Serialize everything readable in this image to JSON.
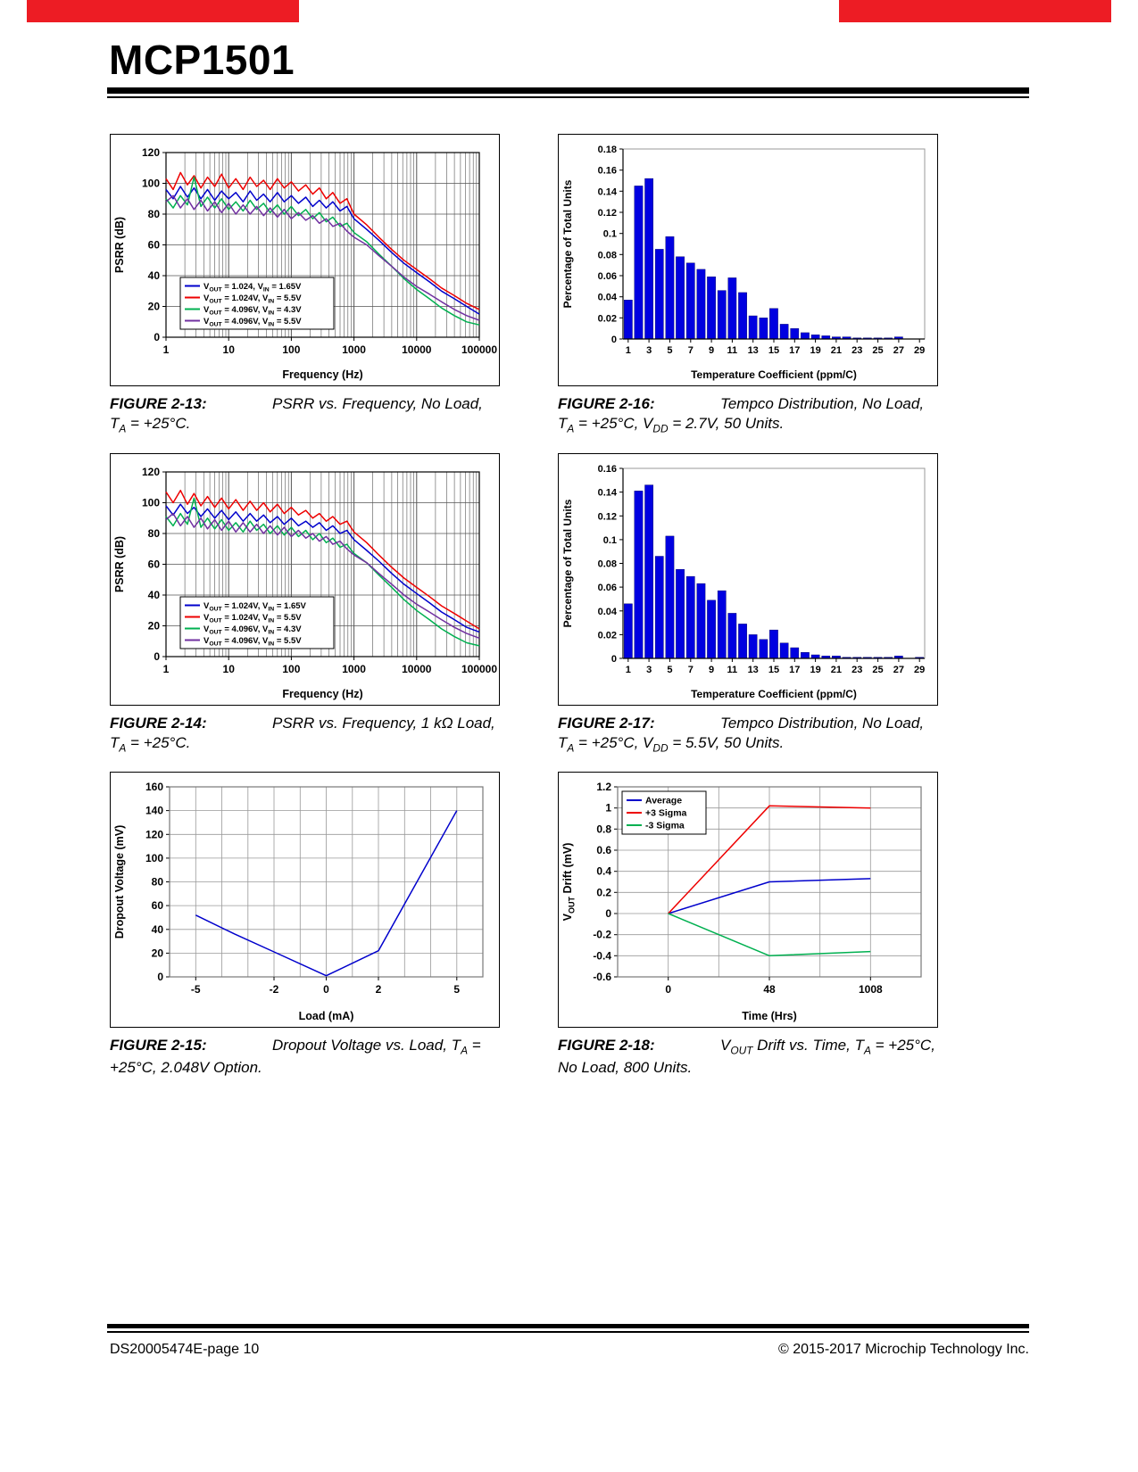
{
  "page": {
    "header_title": "MCP1501",
    "footer_left": "DS20005474E-page 10",
    "footer_right": "© 2015-2017 Microchip Technology Inc.",
    "accent_red": "#ED1C24"
  },
  "chart_data": [
    {
      "id": "figure-2-13",
      "type": "line",
      "caption_label": "FIGURE 2-13:",
      "caption_text": "PSRR vs. Frequency, No Load, T~A~ = +25°C.",
      "xlabel": "Frequency (Hz)",
      "ylabel": "PSRR (dB)",
      "xscale": "log",
      "xlim": [
        1,
        100000
      ],
      "ylim": [
        0,
        120
      ],
      "ystep": 20,
      "x_tick_labels": [
        "1",
        "10",
        "100",
        "1000",
        "10000",
        "100000"
      ],
      "x": [
        1,
        1.3,
        1.7,
        2.2,
        2.8,
        3.6,
        4.6,
        6,
        7.7,
        10,
        13,
        17,
        22,
        28,
        36,
        46,
        60,
        77,
        100,
        130,
        170,
        220,
        280,
        360,
        460,
        600,
        770,
        1000,
        1600,
        2500,
        4000,
        6300,
        10000,
        16000,
        25000,
        40000,
        63000,
        100000
      ],
      "legend": true,
      "series": [
        {
          "label": "V~OUT~ = 1.024, V~IN~ = 1.65V",
          "color": "#0000CC",
          "y": [
            96,
            90,
            98,
            91,
            97,
            90,
            96,
            89,
            95,
            90,
            94,
            88,
            95,
            89,
            93,
            88,
            94,
            88,
            92,
            87,
            91,
            85,
            89,
            84,
            88,
            82,
            85,
            77,
            70,
            63,
            55,
            48,
            42,
            36,
            30,
            25,
            20,
            15
          ]
        },
        {
          "label": "V~OUT~ = 1.024V, V~IN~ = 5.5V",
          "color": "#EE0000",
          "y": [
            103,
            96,
            107,
            99,
            105,
            97,
            104,
            98,
            106,
            97,
            103,
            96,
            104,
            98,
            102,
            96,
            103,
            97,
            101,
            95,
            99,
            93,
            97,
            90,
            94,
            87,
            90,
            80,
            73,
            65,
            57,
            50,
            44,
            38,
            32,
            27,
            22,
            18
          ]
        },
        {
          "label": "V~OUT~ = 4.096V, V~IN~ = 4.3V",
          "color": "#00B050",
          "y": [
            90,
            84,
            92,
            86,
            104,
            85,
            91,
            84,
            90,
            83,
            88,
            82,
            89,
            83,
            87,
            81,
            86,
            80,
            85,
            79,
            83,
            77,
            81,
            75,
            78,
            72,
            74,
            68,
            62,
            54,
            46,
            38,
            31,
            25,
            19,
            14,
            10,
            8
          ]
        },
        {
          "label": "V~OUT~ = 4.096V, V~IN~ = 5.5V",
          "color": "#7030A0",
          "y": [
            88,
            92,
            84,
            90,
            83,
            89,
            82,
            88,
            81,
            87,
            80,
            86,
            80,
            85,
            79,
            84,
            78,
            83,
            77,
            81,
            76,
            79,
            74,
            77,
            72,
            74,
            69,
            65,
            60,
            53,
            46,
            39,
            33,
            28,
            23,
            18,
            14,
            11
          ]
        }
      ]
    },
    {
      "id": "figure-2-16",
      "type": "bar",
      "caption_label": "FIGURE 2-16:",
      "caption_text": "Tempco Distribution, No Load, T~A~ = +25°C, V~DD~ = 2.7V, 50 Units.",
      "xlabel": "Temperature Coefficient (ppm/C)",
      "ylabel": "Percentage of Total Units",
      "ylim": [
        0,
        0.18
      ],
      "ystep": 0.02,
      "bar_color": "#0000E0",
      "categories": [
        1,
        2,
        3,
        4,
        5,
        6,
        7,
        8,
        9,
        10,
        11,
        12,
        13,
        14,
        15,
        16,
        17,
        18,
        19,
        20,
        21,
        22,
        23,
        24,
        25,
        26,
        27,
        28,
        29
      ],
      "values": [
        0.037,
        0.145,
        0.152,
        0.085,
        0.097,
        0.078,
        0.072,
        0.066,
        0.059,
        0.046,
        0.058,
        0.044,
        0.022,
        0.02,
        0.029,
        0.014,
        0.01,
        0.006,
        0.004,
        0.003,
        0.002,
        0.002,
        0.001,
        0.001,
        0.001,
        0.001,
        0.002,
        0,
        0
      ]
    },
    {
      "id": "figure-2-14",
      "type": "line",
      "caption_label": "FIGURE 2-14:",
      "caption_text": "PSRR vs. Frequency, 1 kΩ Load, T~A~ = +25°C.",
      "xlabel": "Frequency (Hz)",
      "ylabel": "PSRR (dB)",
      "xscale": "log",
      "xlim": [
        1,
        100000
      ],
      "ylim": [
        0,
        120
      ],
      "ystep": 20,
      "x_tick_labels": [
        "1",
        "10",
        "100",
        "1000",
        "10000",
        "100000"
      ],
      "x": [
        1,
        1.3,
        1.7,
        2.2,
        2.8,
        3.6,
        4.6,
        6,
        7.7,
        10,
        13,
        17,
        22,
        28,
        36,
        46,
        60,
        77,
        100,
        130,
        170,
        220,
        280,
        360,
        460,
        600,
        770,
        1000,
        1600,
        2500,
        4000,
        6300,
        10000,
        16000,
        25000,
        40000,
        63000,
        100000
      ],
      "legend": true,
      "series": [
        {
          "label": "V~OUT~ = 1.024V, V~IN~ = 1.65V",
          "color": "#0000CC",
          "y": [
            98,
            92,
            99,
            93,
            97,
            91,
            96,
            90,
            95,
            89,
            94,
            88,
            93,
            88,
            92,
            87,
            91,
            86,
            90,
            85,
            88,
            84,
            87,
            82,
            85,
            80,
            82,
            76,
            69,
            62,
            54,
            47,
            41,
            35,
            29,
            24,
            19,
            16
          ]
        },
        {
          "label": "V~OUT~ = 1.024V, V~IN~ = 5.5V",
          "color": "#EE0000",
          "y": [
            107,
            100,
            108,
            99,
            106,
            98,
            104,
            97,
            103,
            96,
            102,
            95,
            101,
            95,
            100,
            94,
            99,
            93,
            97,
            92,
            95,
            90,
            93,
            88,
            91,
            86,
            88,
            81,
            74,
            66,
            58,
            51,
            45,
            39,
            33,
            28,
            23,
            18
          ]
        },
        {
          "label": "V~OUT~ = 4.096V, V~IN~ = 4.3V",
          "color": "#00B050",
          "y": [
            91,
            85,
            93,
            86,
            103,
            84,
            90,
            83,
            89,
            82,
            87,
            81,
            88,
            82,
            86,
            80,
            85,
            79,
            84,
            78,
            82,
            76,
            80,
            74,
            77,
            71,
            73,
            67,
            61,
            53,
            45,
            37,
            30,
            24,
            18,
            13,
            9,
            7
          ]
        },
        {
          "label": "V~OUT~ = 4.096V, V~IN~ = 5.5V",
          "color": "#7030A0",
          "y": [
            89,
            93,
            85,
            91,
            84,
            90,
            83,
            89,
            82,
            88,
            81,
            87,
            81,
            86,
            80,
            85,
            79,
            84,
            78,
            82,
            77,
            80,
            75,
            78,
            73,
            75,
            70,
            66,
            61,
            54,
            47,
            40,
            34,
            29,
            24,
            19,
            15,
            12
          ]
        }
      ]
    },
    {
      "id": "figure-2-17",
      "type": "bar",
      "caption_label": "FIGURE 2-17:",
      "caption_text": "Tempco Distribution, No Load, T~A~ = +25°C, V~DD~ = 5.5V, 50 Units.",
      "xlabel": "Temperature Coefficient (ppm/C)",
      "ylabel": "Percentage of Total Units",
      "ylim": [
        0,
        0.16
      ],
      "ystep": 0.02,
      "bar_color": "#0000E0",
      "categories": [
        1,
        2,
        3,
        4,
        5,
        6,
        7,
        8,
        9,
        10,
        11,
        12,
        13,
        14,
        15,
        16,
        17,
        18,
        19,
        20,
        21,
        22,
        23,
        24,
        25,
        26,
        27,
        28,
        29
      ],
      "values": [
        0.046,
        0.141,
        0.146,
        0.086,
        0.103,
        0.075,
        0.069,
        0.063,
        0.049,
        0.057,
        0.038,
        0.029,
        0.02,
        0.016,
        0.024,
        0.013,
        0.009,
        0.005,
        0.003,
        0.002,
        0.002,
        0.001,
        0.001,
        0.001,
        0.001,
        0.001,
        0.002,
        0,
        0.001
      ]
    },
    {
      "id": "figure-2-15",
      "type": "line",
      "caption_label": "FIGURE 2-15:",
      "caption_text": "Dropout Voltage vs. Load, T~A~ = +25°C, 2.048V Option.",
      "xlabel": "Load (mA)",
      "ylabel": "Dropout Voltage (mV)",
      "xscale": "linear",
      "xlim": [
        -6,
        6
      ],
      "xgrid": 1,
      "ylim": [
        0,
        160
      ],
      "ystep": 20,
      "xticks": [
        {
          "v": -5,
          "label": "-5"
        },
        {
          "v": -2,
          "label": "-2"
        },
        {
          "v": 0,
          "label": "0"
        },
        {
          "v": 2,
          "label": "2"
        },
        {
          "v": 5,
          "label": "5"
        }
      ],
      "legend": false,
      "series": [
        {
          "label": "Dropout Voltage",
          "color": "#0000CC",
          "x": [
            -5,
            -3.5,
            -2,
            0,
            2,
            5
          ],
          "y": [
            52,
            36,
            21,
            1,
            22,
            140
          ]
        }
      ]
    },
    {
      "id": "figure-2-18",
      "type": "line",
      "caption_label": "FIGURE 2-18:",
      "caption_text": "V~OUT~ Drift vs. Time, T~A~ = +25°C, No Load, 800 Units.",
      "xlabel": "Time (Hrs)",
      "ylabel": "V~OUT~ Drift (mV)",
      "xscale": "linear",
      "xlim": [
        0,
        6
      ],
      "xgrid": 1,
      "ylim": [
        -0.6,
        1.2
      ],
      "ystep": 0.2,
      "xticks": [
        {
          "v": 1,
          "label": "0"
        },
        {
          "v": 3,
          "label": "48"
        },
        {
          "v": 5,
          "label": "1008"
        }
      ],
      "legend": true,
      "series": [
        {
          "label": "Average",
          "color": "#0000CC",
          "x": [
            1,
            3,
            5
          ],
          "y": [
            0,
            0.3,
            0.33
          ]
        },
        {
          "label": "+3 Sigma",
          "color": "#EE0000",
          "x": [
            1,
            3,
            5
          ],
          "y": [
            0,
            1.02,
            1.0
          ]
        },
        {
          "label": "-3 Sigma",
          "color": "#00B050",
          "x": [
            1,
            3,
            5
          ],
          "y": [
            0,
            -0.4,
            -0.36
          ]
        }
      ]
    }
  ]
}
